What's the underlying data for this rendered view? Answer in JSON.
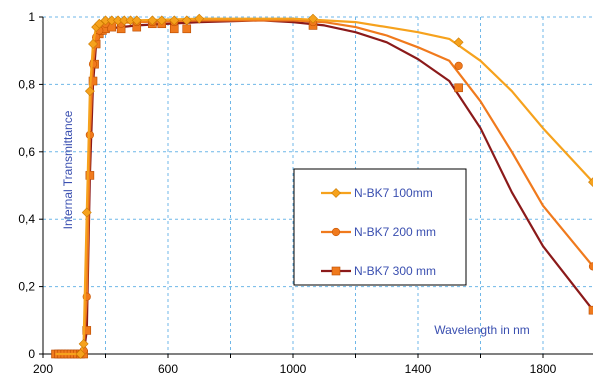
{
  "chart_data": {
    "type": "line",
    "xlabel": "Wavelength in nm",
    "ylabel": "Internal Transmittance",
    "xlim": [
      200,
      1960
    ],
    "ylim": [
      0,
      1
    ],
    "x_ticks": [
      200,
      600,
      1000,
      1400,
      1800
    ],
    "x_tick_labels": [
      "200",
      "600",
      "1000",
      "1400",
      "1800"
    ],
    "y_ticks": [
      0,
      0.2,
      0.4,
      0.6,
      0.8,
      1
    ],
    "y_tick_labels": [
      "0",
      "0,2",
      "0,4",
      "0,6",
      "0,8",
      "1"
    ],
    "grid": true,
    "legend_position": "center-right",
    "series": [
      {
        "name": "N-BK7 100mm",
        "color": "#f6a21d",
        "marker": "diamond",
        "curve": [
          [
            240,
            0
          ],
          [
            320,
            0
          ],
          [
            330,
            0.03
          ],
          [
            340,
            0.42
          ],
          [
            350,
            0.78
          ],
          [
            360,
            0.92
          ],
          [
            370,
            0.97
          ],
          [
            380,
            0.98
          ],
          [
            400,
            0.99
          ],
          [
            500,
            0.99
          ],
          [
            700,
            0.995
          ],
          [
            1000,
            0.995
          ],
          [
            1100,
            0.99
          ],
          [
            1200,
            0.985
          ],
          [
            1300,
            0.97
          ],
          [
            1400,
            0.955
          ],
          [
            1500,
            0.935
          ],
          [
            1600,
            0.87
          ],
          [
            1700,
            0.78
          ],
          [
            1800,
            0.67
          ],
          [
            1960,
            0.51
          ]
        ],
        "markers": [
          [
            320,
            0
          ],
          [
            330,
            0.03
          ],
          [
            340,
            0.42
          ],
          [
            350,
            0.78
          ],
          [
            360,
            0.92
          ],
          [
            370,
            0.97
          ],
          [
            380,
            0.98
          ],
          [
            400,
            0.99
          ],
          [
            420,
            0.99
          ],
          [
            440,
            0.99
          ],
          [
            460,
            0.99
          ],
          [
            480,
            0.99
          ],
          [
            500,
            0.99
          ],
          [
            550,
            0.99
          ],
          [
            580,
            0.99
          ],
          [
            620,
            0.99
          ],
          [
            660,
            0.99
          ],
          [
            700,
            0.995
          ],
          [
            1064,
            0.995
          ],
          [
            1530,
            0.925
          ],
          [
            1960,
            0.51
          ]
        ]
      },
      {
        "name": "N-BK7 200 mm",
        "color": "#f07a1d",
        "marker": "circle",
        "curve": [
          [
            240,
            0
          ],
          [
            320,
            0
          ],
          [
            330,
            0.01
          ],
          [
            340,
            0.17
          ],
          [
            350,
            0.65
          ],
          [
            360,
            0.86
          ],
          [
            370,
            0.94
          ],
          [
            380,
            0.96
          ],
          [
            400,
            0.98
          ],
          [
            500,
            0.985
          ],
          [
            700,
            0.99
          ],
          [
            1000,
            0.99
          ],
          [
            1100,
            0.985
          ],
          [
            1200,
            0.97
          ],
          [
            1300,
            0.945
          ],
          [
            1400,
            0.91
          ],
          [
            1500,
            0.87
          ],
          [
            1600,
            0.75
          ],
          [
            1700,
            0.6
          ],
          [
            1800,
            0.44
          ],
          [
            1960,
            0.26
          ]
        ],
        "markers": [
          [
            320,
            0
          ],
          [
            330,
            0.01
          ],
          [
            340,
            0.17
          ],
          [
            350,
            0.65
          ],
          [
            360,
            0.86
          ],
          [
            370,
            0.94
          ],
          [
            380,
            0.96
          ],
          [
            400,
            0.98
          ],
          [
            450,
            0.98
          ],
          [
            500,
            0.985
          ],
          [
            550,
            0.985
          ],
          [
            620,
            0.985
          ],
          [
            1064,
            0.985
          ],
          [
            1530,
            0.855
          ],
          [
            1960,
            0.26
          ]
        ]
      },
      {
        "name": "N-BK7 300 mm",
        "color": "#8b1a1a",
        "marker": "square",
        "curve": [
          [
            240,
            0
          ],
          [
            320,
            0
          ],
          [
            330,
            0
          ],
          [
            340,
            0.07
          ],
          [
            350,
            0.53
          ],
          [
            360,
            0.8
          ],
          [
            370,
            0.92
          ],
          [
            380,
            0.95
          ],
          [
            400,
            0.965
          ],
          [
            500,
            0.975
          ],
          [
            700,
            0.985
          ],
          [
            900,
            0.99
          ],
          [
            1000,
            0.985
          ],
          [
            1100,
            0.975
          ],
          [
            1200,
            0.955
          ],
          [
            1300,
            0.925
          ],
          [
            1400,
            0.875
          ],
          [
            1500,
            0.81
          ],
          [
            1600,
            0.67
          ],
          [
            1700,
            0.48
          ],
          [
            1800,
            0.32
          ],
          [
            1960,
            0.13
          ]
        ],
        "markers": [
          [
            240,
            0
          ],
          [
            250,
            0
          ],
          [
            260,
            0
          ],
          [
            270,
            0
          ],
          [
            280,
            0
          ],
          [
            290,
            0
          ],
          [
            300,
            0
          ],
          [
            310,
            0
          ],
          [
            320,
            0
          ],
          [
            330,
            0
          ],
          [
            340,
            0.07
          ],
          [
            350,
            0.53
          ],
          [
            360,
            0.81
          ],
          [
            365,
            0.86
          ],
          [
            370,
            0.92
          ],
          [
            380,
            0.95
          ],
          [
            390,
            0.96
          ],
          [
            400,
            0.965
          ],
          [
            420,
            0.97
          ],
          [
            450,
            0.965
          ],
          [
            500,
            0.97
          ],
          [
            550,
            0.98
          ],
          [
            580,
            0.98
          ],
          [
            620,
            0.965
          ],
          [
            660,
            0.965
          ],
          [
            1064,
            0.975
          ],
          [
            1530,
            0.79
          ],
          [
            1960,
            0.13
          ]
        ]
      }
    ]
  }
}
